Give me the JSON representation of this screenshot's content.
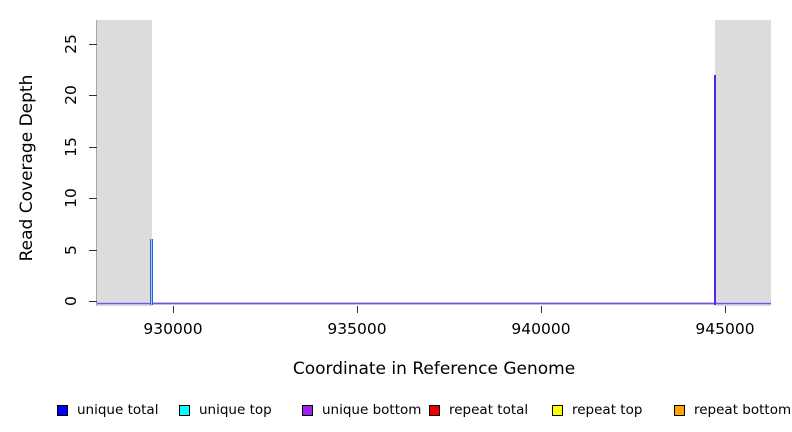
{
  "chart_data": {
    "type": "line",
    "title": "",
    "xlabel": "Coordinate in Reference Genome",
    "ylabel": "Read Coverage Depth",
    "xlim": [
      927935,
      946250
    ],
    "ylim": [
      0,
      27.3
    ],
    "x_ticks": [
      930000,
      935000,
      940000,
      945000
    ],
    "y_ticks": [
      0,
      5,
      10,
      15,
      20,
      25
    ],
    "grid": false,
    "legend_position": "bottom",
    "plot_background": "#ffffff",
    "frame_top_color": "#999999",
    "shaded_regions": [
      {
        "name": "flanking-region-left",
        "x0": 927935,
        "x1": 929430,
        "color": "#dcdcdc"
      },
      {
        "name": "flanking-region-right",
        "x0": 944730,
        "x1": 946250,
        "color": "#dcdcdc"
      }
    ],
    "series": [
      {
        "name": "unique total",
        "color": "#0000ff",
        "peaks": [
          {
            "x": 929420,
            "depth": 6
          },
          {
            "x": 944720,
            "depth": 22
          }
        ]
      },
      {
        "name": "unique top",
        "color": "#00ffff",
        "peaks": [
          {
            "x": 929420,
            "depth": 6
          }
        ]
      },
      {
        "name": "unique bottom",
        "color": "#a020f0",
        "peaks": [
          {
            "x": 944720,
            "depth": 22
          }
        ]
      },
      {
        "name": "repeat total",
        "color": "#ee0000",
        "peaks": []
      },
      {
        "name": "repeat top",
        "color": "#ffff00",
        "peaks": []
      },
      {
        "name": "repeat bottom",
        "color": "#ffa500",
        "peaks": []
      }
    ],
    "rendered_spikes": [
      {
        "x": 929420,
        "depth": 6,
        "width": 3,
        "colors": [
          "#2e5de6",
          "#a6cdf6",
          "#2e5de6"
        ]
      },
      {
        "x": 944720,
        "depth": 22,
        "width": 2,
        "colors": [
          "#5026e8",
          "#5026e8"
        ]
      }
    ],
    "baseline": {
      "value": 0,
      "color": "#7a55dc",
      "halo_color": "#c6b9f0"
    }
  },
  "legend": {
    "items": [
      {
        "label": "unique total",
        "color": "#0000ff"
      },
      {
        "label": "unique top",
        "color": "#00ffff"
      },
      {
        "label": "unique bottom",
        "color": "#a020f0"
      },
      {
        "label": "repeat total",
        "color": "#ee0000"
      },
      {
        "label": "repeat top",
        "color": "#ffff00"
      },
      {
        "label": "repeat bottom",
        "color": "#ffa500"
      }
    ],
    "swatch_border_color": "#000000"
  }
}
